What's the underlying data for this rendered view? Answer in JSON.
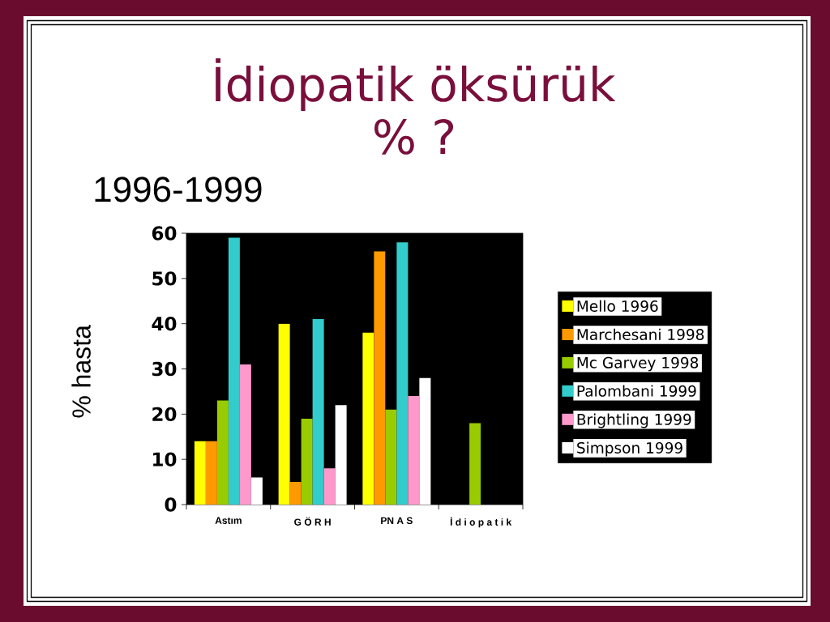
{
  "chart_data": {
    "type": "bar",
    "title": "İdiopatik öksürük",
    "subtitle": "% ?",
    "ylabel": "% hasta",
    "annotations": [
      "1996-1999"
    ],
    "categories": [
      "Astım",
      "G Ö R H",
      "PN A S",
      "İ d i o p a t i k"
    ],
    "series": [
      {
        "name": "Mello 1996",
        "color": "#ffff00",
        "values": [
          14,
          40,
          38,
          null
        ]
      },
      {
        "name": "Marchesani 1998",
        "color": "#ff9900",
        "values": [
          14,
          5,
          56,
          null
        ]
      },
      {
        "name": "Mc Garvey 1998",
        "color": "#99cc00",
        "values": [
          23,
          19,
          21,
          18
        ]
      },
      {
        "name": "Palombani 1999",
        "color": "#33cccc",
        "values": [
          59,
          41,
          58,
          null
        ]
      },
      {
        "name": "Brightling 1999",
        "color": "#ff99cc",
        "values": [
          31,
          8,
          24,
          null
        ]
      },
      {
        "name": "Simpson 1999",
        "color": "#ffffff",
        "values": [
          6,
          22,
          28,
          null
        ]
      }
    ],
    "ylim": [
      0,
      60
    ],
    "yticks": [
      0,
      10,
      20,
      30,
      40,
      50,
      60
    ],
    "legend": "right"
  }
}
